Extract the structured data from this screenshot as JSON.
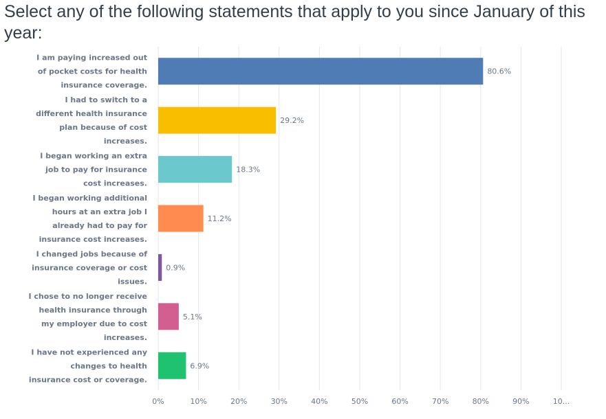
{
  "title": "Select any of the following statements that apply to you since January of this year:",
  "chart_data": {
    "type": "bar",
    "orientation": "horizontal",
    "categories": [
      "I am paying increased out of pocket costs for health insurance coverage.",
      "I had to switch to a different health insurance plan because of cost increases.",
      "I began working an extra job to pay for insurance cost increases.",
      "I began working additional hours at an extra job I already had to pay for insurance cost increases.",
      "I changed jobs because of insurance coverage or cost issues.",
      "I chose to no longer receive health insurance through my employer due to cost increases.",
      "I have not experienced any changes to health insurance cost or coverage."
    ],
    "category_lines": [
      [
        "I am paying increased out",
        "of pocket costs for health",
        "insurance coverage."
      ],
      [
        "I had to switch to a",
        "different health insurance",
        "plan because of cost",
        "increases."
      ],
      [
        "I began working an extra",
        "job to pay for insurance",
        "cost increases."
      ],
      [
        "I began working additional",
        "hours at an extra job I",
        "already had to pay for",
        "insurance cost increases."
      ],
      [
        "I changed jobs because of",
        "insurance coverage or cost",
        "issues."
      ],
      [
        "I chose to no longer receive",
        "health insurance through",
        "my employer due to cost",
        "increases."
      ],
      [
        "I have not experienced any",
        "changes to health",
        "insurance cost or coverage."
      ]
    ],
    "values": [
      80.6,
      29.2,
      18.3,
      11.2,
      0.9,
      5.1,
      6.9
    ],
    "value_labels": [
      "80.6%",
      "29.2%",
      "18.3%",
      "11.2%",
      "0.9%",
      "5.1%",
      "6.9%"
    ],
    "colors": [
      "#507cb6",
      "#f9be00",
      "#6bc8cd",
      "#ff8b4f",
      "#7e5a9b",
      "#d25f90",
      "#1fc26f"
    ],
    "xlim": [
      0,
      100
    ],
    "x_ticks": [
      "0%",
      "10%",
      "20%",
      "30%",
      "40%",
      "50%",
      "60%",
      "70%",
      "80%",
      "90%",
      "10..."
    ],
    "grid": true,
    "xlabel": "",
    "ylabel": ""
  }
}
